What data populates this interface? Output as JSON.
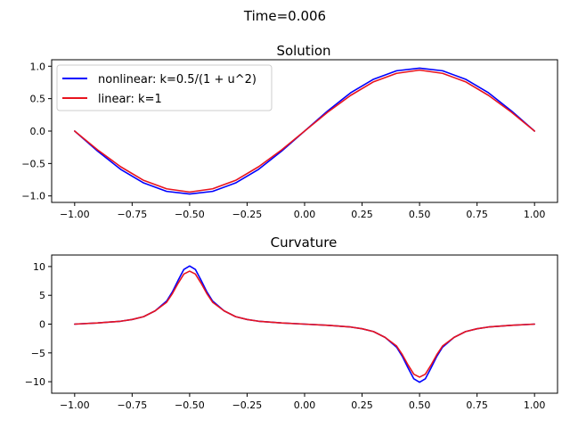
{
  "figure": {
    "suptitle": "Time=0.006"
  },
  "colors": {
    "nonlinear": "#0000ff",
    "linear": "#e8141e",
    "axes": "#000000",
    "background": "#ffffff"
  },
  "chart_data": [
    {
      "type": "line",
      "title": "Solution",
      "xlabel": "",
      "ylabel": "",
      "xlim": [
        -1.1,
        1.1
      ],
      "ylim": [
        -1.1,
        1.1
      ],
      "xticks": [
        -1.0,
        -0.75,
        -0.5,
        -0.25,
        0.0,
        0.25,
        0.5,
        0.75,
        1.0
      ],
      "xticklabels": [
        "−1.00",
        "−0.75",
        "−0.50",
        "−0.25",
        "0.00",
        "0.25",
        "0.50",
        "0.75",
        "1.00"
      ],
      "yticks": [
        1.0,
        0.5,
        0.0,
        -0.5,
        -1.0
      ],
      "yticklabels": [
        "1.0",
        "0.5",
        "0.0",
        "−0.5",
        "−1.0"
      ],
      "legend": {
        "placement": "upper-left"
      },
      "x": [
        -1.0,
        -0.9,
        -0.8,
        -0.7,
        -0.6,
        -0.5,
        -0.4,
        -0.3,
        -0.2,
        -0.1,
        0.0,
        0.1,
        0.2,
        0.3,
        0.4,
        0.5,
        0.6,
        0.7,
        0.8,
        0.9,
        1.0
      ],
      "series": [
        {
          "name": "nonlinear: k=0.5/(1 + u^2)",
          "color": "#0000ff",
          "values": [
            0.0,
            -0.31,
            -0.59,
            -0.8,
            -0.93,
            -0.97,
            -0.93,
            -0.8,
            -0.59,
            -0.31,
            0.0,
            0.31,
            0.59,
            0.8,
            0.93,
            0.97,
            0.93,
            0.8,
            0.59,
            0.31,
            0.0
          ]
        },
        {
          "name": "linear: k=1",
          "color": "#e8141e",
          "values": [
            0.0,
            -0.29,
            -0.55,
            -0.76,
            -0.89,
            -0.94,
            -0.89,
            -0.76,
            -0.55,
            -0.29,
            0.0,
            0.29,
            0.55,
            0.76,
            0.89,
            0.94,
            0.89,
            0.76,
            0.55,
            0.29,
            0.0
          ]
        }
      ]
    },
    {
      "type": "line",
      "title": "Curvature",
      "xlabel": "",
      "ylabel": "",
      "xlim": [
        -1.1,
        1.1
      ],
      "ylim": [
        -12.0,
        12.0
      ],
      "xticks": [
        -1.0,
        -0.75,
        -0.5,
        -0.25,
        0.0,
        0.25,
        0.5,
        0.75,
        1.0
      ],
      "xticklabels": [
        "−1.00",
        "−0.75",
        "−0.50",
        "−0.25",
        "0.00",
        "0.25",
        "0.50",
        "0.75",
        "1.00"
      ],
      "yticks": [
        10,
        5,
        0,
        -5,
        -10
      ],
      "yticklabels": [
        "10",
        "5",
        "0",
        "−5",
        "−10"
      ],
      "x": [
        -1.0,
        -0.9,
        -0.8,
        -0.75,
        -0.7,
        -0.65,
        -0.6,
        -0.575,
        -0.55,
        -0.525,
        -0.5,
        -0.475,
        -0.45,
        -0.425,
        -0.4,
        -0.35,
        -0.3,
        -0.25,
        -0.2,
        -0.1,
        0.0,
        0.1,
        0.2,
        0.25,
        0.3,
        0.35,
        0.4,
        0.425,
        0.45,
        0.475,
        0.5,
        0.525,
        0.55,
        0.575,
        0.6,
        0.65,
        0.7,
        0.75,
        0.8,
        0.9,
        1.0
      ],
      "series": [
        {
          "name": "nonlinear: k=0.5/(1 + u^2)",
          "color": "#0000ff",
          "values": [
            0.0,
            0.2,
            0.5,
            0.8,
            1.3,
            2.3,
            4.0,
            5.6,
            7.6,
            9.5,
            10.1,
            9.5,
            7.6,
            5.6,
            4.0,
            2.3,
            1.3,
            0.8,
            0.5,
            0.2,
            0.0,
            -0.2,
            -0.5,
            -0.8,
            -1.3,
            -2.3,
            -4.0,
            -5.6,
            -7.6,
            -9.5,
            -10.1,
            -9.5,
            -7.6,
            -5.6,
            -4.0,
            -2.3,
            -1.3,
            -0.8,
            -0.5,
            -0.2,
            0.0
          ]
        },
        {
          "name": "linear: k=1",
          "color": "#e8141e",
          "values": [
            0.0,
            0.2,
            0.5,
            0.8,
            1.3,
            2.3,
            3.8,
            5.3,
            7.1,
            8.7,
            9.2,
            8.7,
            7.1,
            5.3,
            3.8,
            2.3,
            1.3,
            0.8,
            0.5,
            0.2,
            0.0,
            -0.2,
            -0.5,
            -0.8,
            -1.3,
            -2.3,
            -3.8,
            -5.3,
            -7.1,
            -8.7,
            -9.2,
            -8.7,
            -7.1,
            -5.3,
            -3.8,
            -2.3,
            -1.3,
            -0.8,
            -0.5,
            -0.2,
            0.0
          ]
        }
      ]
    }
  ]
}
